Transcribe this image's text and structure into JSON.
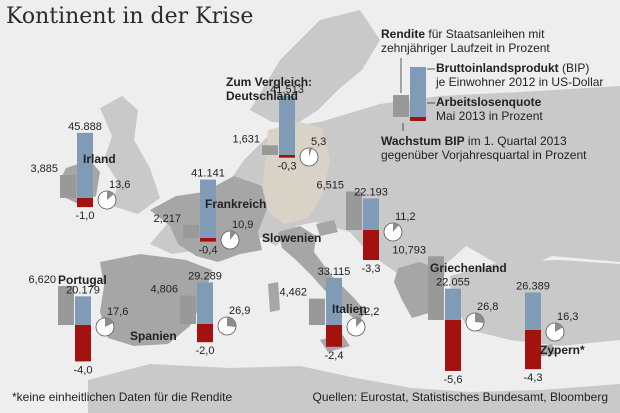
{
  "header": {
    "title": "Kontinent in der Krise"
  },
  "legend": {
    "rendite_bold": "Rendite",
    "rendite_rest": "für Staatsanleihen mit",
    "rendite_line2": "zehnjähriger Laufzeit in Prozent",
    "bip_bold": "Bruttoinlandsprodukt",
    "bip_rest": "(BIP)",
    "bip_line2": "je Einwohner 2012 in US-Dollar",
    "alq_bold": "Arbeitslosenquote",
    "alq_line2": "Mai 2013 in Prozent",
    "wachstum_bold": "Wachstum BIP",
    "wachstum_rest": "im 1. Quartal 2013",
    "wachstum_line2": "gegenüber Vorjahresquartal in Prozent"
  },
  "colors": {
    "rendite": "#999999",
    "bip": "#7f9bb5",
    "growth": "#a3120f",
    "pie_fill": "#8c8c8c",
    "map_background": "#eeeeee",
    "map_land": "#c9c9c9",
    "map_highlight": "#a6a6a6",
    "map_germany": "#d9d2c6"
  },
  "footer": {
    "note": "*keine einheitlichen Daten für die Rendite",
    "source": "Quellen: Eurostat, Statistisches Bundesamt, Bloomberg"
  },
  "chart_data": {
    "type": "bar",
    "title": "Kontinent in der Krise",
    "series": [
      {
        "name": "Rendite für Staatsanleihen mit zehnjähriger Laufzeit in Prozent",
        "unit": "%"
      },
      {
        "name": "Bruttoinlandsprodukt (BIP) je Einwohner 2012 in US-Dollar",
        "unit": "USD"
      },
      {
        "name": "Arbeitslosenquote Mai 2013 in Prozent",
        "unit": "%",
        "display": "pie"
      },
      {
        "name": "Wachstum BIP im 1. Quartal 2013 gegenüber Vorjahresquartal in Prozent",
        "unit": "%"
      }
    ],
    "countries": [
      {
        "name": "Zum Vergleich: Deutschland",
        "rendite": 1.631,
        "rendite_label": "1,631",
        "bip": 41513,
        "bip_label": "41.513",
        "alq": 5.3,
        "alq_label": "5,3",
        "growth": -0.3,
        "growth_label": "-0,3"
      },
      {
        "name": "Irland",
        "rendite": 3.885,
        "rendite_label": "3,885",
        "bip": 45888,
        "bip_label": "45.888",
        "alq": 13.6,
        "alq_label": "13,6",
        "growth": -1.0,
        "growth_label": "-1,0"
      },
      {
        "name": "Frankreich",
        "rendite": 2.217,
        "rendite_label": "2,217",
        "bip": 41141,
        "bip_label": "41.141",
        "alq": 10.9,
        "alq_label": "10,9",
        "growth": -0.4,
        "growth_label": "-0,4"
      },
      {
        "name": "Slowenien",
        "rendite": 6.515,
        "rendite_label": "6,515",
        "bip": 22193,
        "bip_label": "22.193",
        "alq": 11.2,
        "alq_label": "11,2",
        "growth": -3.3,
        "growth_label": "-3,3"
      },
      {
        "name": "Portugal",
        "rendite": 6.62,
        "rendite_label": "6,620",
        "bip": 20179,
        "bip_label": "20.179",
        "alq": 17.6,
        "alq_label": "17,6",
        "growth": -4.0,
        "growth_label": "-4,0"
      },
      {
        "name": "Spanien",
        "rendite": 4.806,
        "rendite_label": "4,806",
        "bip": 29289,
        "bip_label": "29.289",
        "alq": 26.9,
        "alq_label": "26,9",
        "growth": -2.0,
        "growth_label": "-2,0"
      },
      {
        "name": "Italien",
        "rendite": 4.462,
        "rendite_label": "4,462",
        "bip": 33115,
        "bip_label": "33.115",
        "alq": 12.2,
        "alq_label": "12,2",
        "growth": -2.4,
        "growth_label": "-2,4"
      },
      {
        "name": "Griechenland",
        "rendite": 10.793,
        "rendite_label": "10,793",
        "bip": 22055,
        "bip_label": "22.055",
        "alq": 26.8,
        "alq_label": "26,8",
        "growth": -5.6,
        "growth_label": "-5,6"
      },
      {
        "name": "Zypern*",
        "rendite": null,
        "rendite_label": "",
        "bip": 26389,
        "bip_label": "26.389",
        "alq": 16.3,
        "alq_label": "16,3",
        "growth": -4.3,
        "growth_label": "-4,3"
      }
    ]
  }
}
